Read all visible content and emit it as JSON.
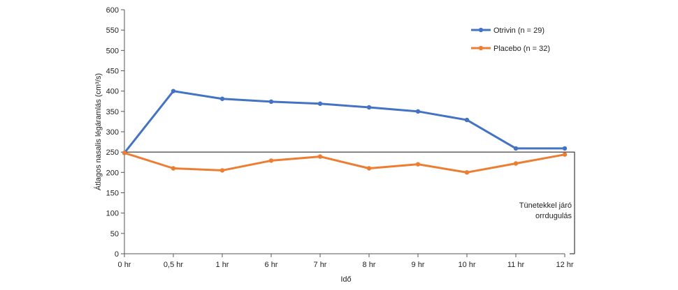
{
  "chart_data": {
    "type": "line",
    "categories": [
      "0 hr",
      "0,5 hr",
      "1 hr",
      "6 hr",
      "7 hr",
      "8 hr",
      "9 hr",
      "10 hr",
      "11 hr",
      "12 hr"
    ],
    "series": [
      {
        "name": "Otrivin (n = 29)",
        "color": "#4472C4",
        "values": [
          248,
          400,
          381,
          374,
          369,
          360,
          350,
          329,
          259,
          259
        ]
      },
      {
        "name": "Placebo (n = 32)",
        "color": "#ED7D31",
        "values": [
          248,
          210,
          205,
          229,
          239,
          210,
          220,
          200,
          222,
          244
        ]
      }
    ],
    "title": "",
    "xlabel": "Idő",
    "ylabel": "Átlagos nasalis légáramlás (cm³/s)",
    "ylim": [
      0,
      600
    ],
    "yticks": [
      0,
      50,
      100,
      150,
      200,
      250,
      300,
      350,
      400,
      450,
      500,
      550,
      600
    ],
    "grid": false,
    "legend": "top-right",
    "threshold": {
      "value": 250,
      "label_line1": "Tünetekkel járó",
      "label_line2": "orrdugulás"
    }
  }
}
